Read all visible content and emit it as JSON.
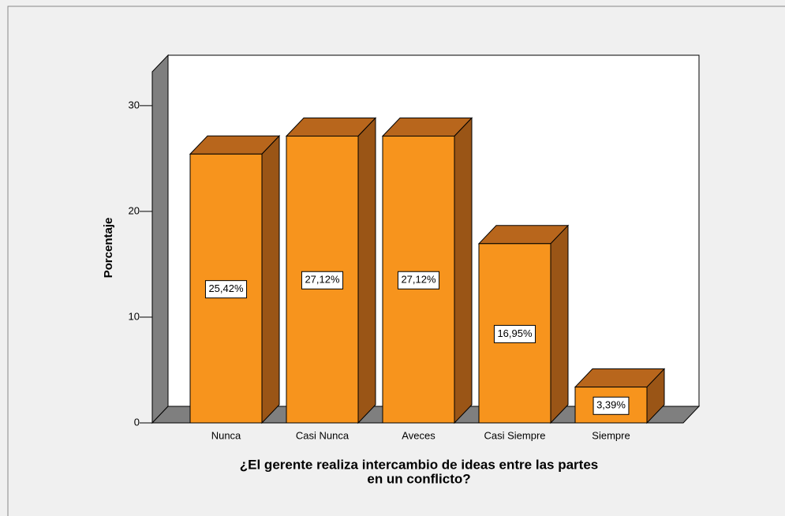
{
  "chart_data": {
    "type": "bar3d",
    "categories": [
      "Nunca",
      "Casi Nunca",
      "Aveces",
      "Casi Siempre",
      "Siempre"
    ],
    "values": [
      25.42,
      27.12,
      27.12,
      16.95,
      3.39
    ],
    "value_labels": [
      "25,42%",
      "27,12%",
      "27,12%",
      "16,95%",
      "3,39%"
    ],
    "color": "#f7941d",
    "ylabel": "Porcentaje",
    "xlabel": [
      "¿El gerente realiza intercambio de ideas entre las partes",
      "en un conflicto?"
    ],
    "ylim": [
      0,
      33.2
    ],
    "yticks": [
      0,
      10,
      20,
      30
    ]
  }
}
